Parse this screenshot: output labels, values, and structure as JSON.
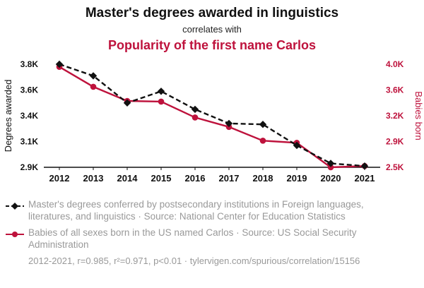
{
  "header": {
    "title": "Master's degrees awarded in linguistics",
    "subtitle": "correlates with",
    "title2": "Popularity of the first name Carlos"
  },
  "chart_data": {
    "type": "line",
    "x": [
      2012,
      2013,
      2014,
      2015,
      2016,
      2017,
      2018,
      2019,
      2020,
      2021
    ],
    "x_tick_labels": [
      "2012",
      "2013",
      "2014",
      "2015",
      "2016",
      "2017",
      "2018",
      "2019",
      "2020",
      "2021"
    ],
    "series": [
      {
        "name": "Master's degrees awarded in linguistics",
        "axis": "left",
        "color": "#111111",
        "style": "dashed",
        "marker": "diamond",
        "values": [
          3800,
          3710,
          3500,
          3590,
          3450,
          3310,
          3300,
          3070,
          2930,
          2910
        ]
      },
      {
        "name": "Popularity of the first name Carlos",
        "axis": "right",
        "color": "#be123c",
        "style": "solid",
        "marker": "circle",
        "values": [
          3960,
          3650,
          3430,
          3420,
          3180,
          3070,
          2910,
          2880,
          2500,
          2520
        ]
      }
    ],
    "left_axis": {
      "label": "Degrees awarded",
      "tick_labels": [
        "3.8K",
        "3.6K",
        "3.4K",
        "3.1K",
        "2.9K"
      ],
      "tick_values": [
        3800,
        3600,
        3400,
        3100,
        2900
      ]
    },
    "right_axis": {
      "label": "Babies born",
      "tick_labels": [
        "4.0K",
        "3.6K",
        "3.2K",
        "2.9K",
        "2.5K"
      ],
      "tick_values": [
        4000,
        3600,
        3200,
        2900,
        2500
      ]
    },
    "grid": false,
    "legend_position": "bottom"
  },
  "legend": {
    "series1": "Master's degrees conferred by postsecondary institutions in Foreign languages, literatures, and linguistics · Source: National Center for Education Statistics",
    "series2": "Babies of all sexes born in the US named Carlos · Source: US Social Security Administration"
  },
  "footer": {
    "stats": "2012-2021, r=0.985, r²=0.971, p<0.01 · tylervigen.com/spurious/correlation/15156"
  },
  "colors": {
    "accent_red": "#be123c",
    "series_black": "#111111",
    "legend_gray": "#999999"
  }
}
